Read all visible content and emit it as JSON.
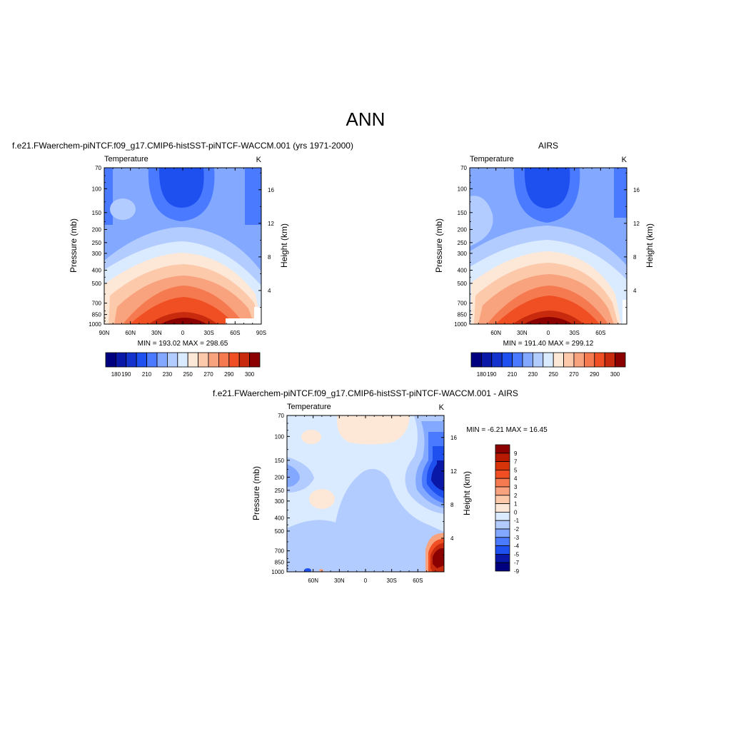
{
  "figure": {
    "main_title": "ANN",
    "units_label": "K",
    "variable_label": "Temperature"
  },
  "panels": [
    {
      "id": "model",
      "title": "f.e21.FWaerchem-piNTCF.f09_g17.CMIP6-histSST-piNTCF-WACCM.001 (yrs 1971-2000)",
      "variable": "Temperature",
      "units": "K",
      "ylabel_left": "Pressure (mb)",
      "ylabel_right": "Height (km)",
      "stats_text": "MIN = 193.02  MAX = 298.65"
    },
    {
      "id": "obs",
      "title": "AIRS",
      "variable": "Temperature",
      "units": "K",
      "ylabel_left": "Pressure (mb)",
      "ylabel_right": "Height (km)",
      "stats_text": "MIN = 191.40  MAX = 299.12"
    },
    {
      "id": "diff",
      "title": "f.e21.FWaerchem-piNTCF.f09_g17.CMIP6-histSST-piNTCF-WACCM.001 - AIRS",
      "variable": "Temperature",
      "units": "K",
      "ylabel_left": "Pressure (mb)",
      "ylabel_right": "Height (km)",
      "stats_text": "MIN =  -6.21  MAX =  16.45"
    }
  ],
  "chart_data": [
    {
      "type": "heatmap",
      "title": "f.e21.FWaerchem-piNTCF.f09_g17.CMIP6-histSST-piNTCF-WACCM.001 (yrs 1971-2000)",
      "x_ticks": [
        "90N",
        "60N",
        "30N",
        "0",
        "30S",
        "60S",
        "90S"
      ],
      "x_values": [
        90,
        60,
        30,
        0,
        -30,
        -60,
        -90
      ],
      "xlim": [
        90,
        -90
      ],
      "y_ticks": [
        "70",
        "100",
        "150",
        "200",
        "250",
        "300",
        "400",
        "500",
        "700",
        "850",
        "1000"
      ],
      "y_values": [
        70,
        100,
        150,
        200,
        250,
        300,
        400,
        500,
        700,
        850,
        1000
      ],
      "ylim": [
        1000,
        70
      ],
      "y_scale": "log",
      "y2_ticks": [
        "4",
        "8",
        "12",
        "16"
      ],
      "y2_values": [
        4,
        8,
        12,
        16
      ],
      "ylabel": "Pressure (mb)",
      "y2label": "Height (km)",
      "min": 193.02,
      "max": 298.65,
      "colorbar_levels": [
        180,
        190,
        210,
        230,
        250,
        270,
        290,
        300
      ],
      "colorbar_labels": [
        "180",
        "190",
        "210",
        "230",
        "250",
        "270",
        "290",
        "300"
      ]
    },
    {
      "type": "heatmap",
      "title": "AIRS",
      "x_ticks": [
        "60N",
        "30N",
        "0",
        "30S",
        "60S"
      ],
      "x_values": [
        60,
        30,
        0,
        -30,
        -60
      ],
      "xlim": [
        90,
        -90
      ],
      "y_ticks": [
        "70",
        "100",
        "150",
        "200",
        "250",
        "300",
        "400",
        "500",
        "700",
        "850",
        "1000"
      ],
      "y_values": [
        70,
        100,
        150,
        200,
        250,
        300,
        400,
        500,
        700,
        850,
        1000
      ],
      "ylim": [
        1000,
        70
      ],
      "y_scale": "log",
      "y2_ticks": [
        "4",
        "8",
        "12",
        "16"
      ],
      "y2_values": [
        4,
        8,
        12,
        16
      ],
      "ylabel": "Pressure (mb)",
      "y2label": "Height (km)",
      "min": 191.4,
      "max": 299.12,
      "colorbar_levels": [
        180,
        190,
        210,
        230,
        250,
        270,
        290,
        300
      ],
      "colorbar_labels": [
        "180",
        "190",
        "210",
        "230",
        "250",
        "270",
        "290",
        "300"
      ]
    },
    {
      "type": "heatmap",
      "title": "f.e21.FWaerchem-piNTCF.f09_g17.CMIP6-histSST-piNTCF-WACCM.001 - AIRS",
      "x_ticks": [
        "60N",
        "30N",
        "0",
        "30S",
        "60S"
      ],
      "x_values": [
        60,
        30,
        0,
        -30,
        -60
      ],
      "xlim": [
        90,
        -90
      ],
      "y_ticks": [
        "70",
        "100",
        "150",
        "200",
        "250",
        "300",
        "400",
        "500",
        "700",
        "850",
        "1000"
      ],
      "y_values": [
        70,
        100,
        150,
        200,
        250,
        300,
        400,
        500,
        700,
        850,
        1000
      ],
      "ylim": [
        1000,
        70
      ],
      "y_scale": "log",
      "y2_ticks": [
        "4",
        "8",
        "12",
        "16"
      ],
      "y2_values": [
        4,
        8,
        12,
        16
      ],
      "ylabel": "Pressure (mb)",
      "y2label": "Height (km)",
      "min": -6.21,
      "max": 16.45,
      "colorbar_levels": [
        9,
        7,
        5,
        4,
        3,
        2,
        1,
        0,
        -1,
        -2,
        -3,
        -4,
        -5,
        -7,
        -9
      ],
      "colorbar_labels": [
        "9",
        "7",
        "5",
        "4",
        "3",
        "2",
        "1",
        "0",
        "-1",
        "-2",
        "-3",
        "-4",
        "-5",
        "-7",
        "-9"
      ]
    }
  ],
  "colors": {
    "abs_scale": [
      "#00007f",
      "#0a18a8",
      "#1433cc",
      "#1e50f0",
      "#4a7aff",
      "#82a8ff",
      "#b3ccff",
      "#daeaff",
      "#fde8d8",
      "#fcc9ab",
      "#f8a27e",
      "#f57a50",
      "#f04f24",
      "#c82a0e",
      "#8b0000"
    ],
    "diff_scale": [
      "#8b0000",
      "#b81a00",
      "#d8340a",
      "#f04f24",
      "#f57a50",
      "#f8a27e",
      "#fcc9ab",
      "#fde8d8",
      "#daeaff",
      "#b3ccff",
      "#82a8ff",
      "#4a7aff",
      "#1e50f0",
      "#0a18a8",
      "#00007f"
    ],
    "c_dark_blue": "#1e50f0",
    "c_mid_blue": "#4a7aff",
    "c_light_blue": "#82a8ff",
    "c_pale_blue": "#b3ccff",
    "c_faint_blue": "#daeaff",
    "c_faint_red": "#fde8d8",
    "c_pale_red": "#fcc9ab",
    "c_light_red": "#f8a27e",
    "c_mid_red": "#f57a50",
    "c_red": "#f04f24",
    "c_dark_red": "#c82a0e",
    "c_darkest_red": "#8b0000"
  }
}
